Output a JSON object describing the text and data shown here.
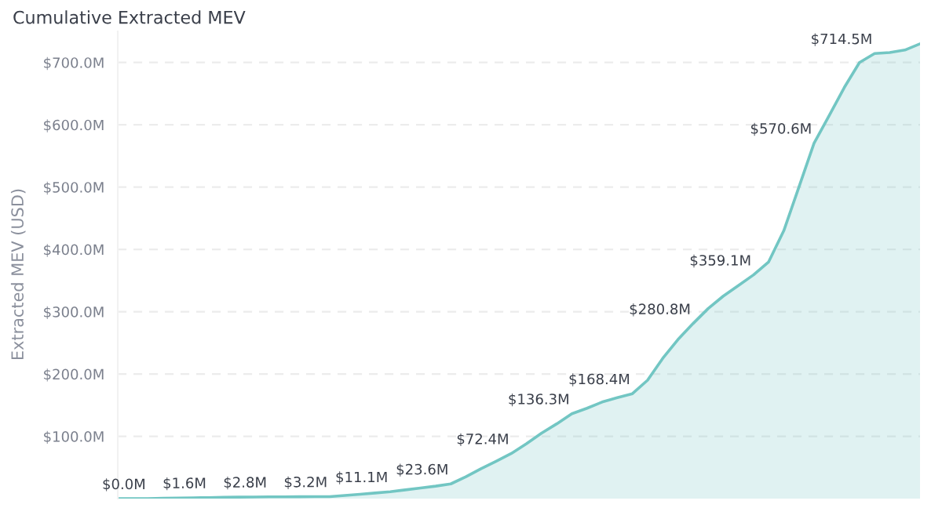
{
  "chart_data": {
    "type": "area",
    "title": "Cumulative Extracted MEV",
    "ylabel": "Extracted MEV (USD)",
    "categories": [
      null,
      null,
      null,
      null,
      null,
      null,
      null,
      null,
      null,
      null,
      null,
      null,
      null,
      null,
      null,
      null,
      null,
      null,
      null,
      null,
      null,
      null,
      null,
      null,
      null,
      null,
      null,
      null,
      null,
      null,
      null,
      null,
      null,
      null,
      null,
      null,
      null,
      null,
      null,
      null,
      null,
      null,
      null,
      null,
      null,
      null,
      null,
      null,
      null,
      null,
      null,
      null,
      null,
      null
    ],
    "series": [
      {
        "color": "#72c6c3",
        "values": [
          0,
          0,
          0,
          0.5,
          0.9,
          1.2,
          1.6,
          2.0,
          2.3,
          2.6,
          2.8,
          2.9,
          3.0,
          3.1,
          3.2,
          5,
          7,
          9,
          11.1,
          14,
          17,
          20,
          23.6,
          35,
          48,
          60,
          72.4,
          88,
          105,
          120,
          136.3,
          145,
          155,
          162,
          168.4,
          190,
          225,
          255,
          280.8,
          305,
          325,
          342,
          359.1,
          380,
          430,
          500,
          570.6,
          615,
          660,
          700,
          714.5,
          716,
          720,
          730
        ],
        "value_labels": [
          null,
          null,
          "$0.0M",
          null,
          null,
          null,
          "$1.6M",
          null,
          null,
          null,
          "$2.8M",
          null,
          null,
          null,
          "$3.2M",
          null,
          null,
          null,
          "$11.1M",
          null,
          null,
          null,
          "$23.6M",
          null,
          null,
          null,
          "$72.4M",
          null,
          null,
          null,
          "$136.3M",
          null,
          null,
          null,
          "$168.4M",
          null,
          null,
          null,
          "$280.8M",
          null,
          null,
          null,
          "$359.1M",
          null,
          null,
          null,
          "$570.6M",
          null,
          null,
          null,
          "$714.5M",
          null,
          null,
          null
        ]
      }
    ],
    "ylim": [
      0,
      750
    ],
    "yticks": [
      {
        "value": 100,
        "label": "$100.0M"
      },
      {
        "value": 200,
        "label": "$200.0M"
      },
      {
        "value": 300,
        "label": "$300.0M"
      },
      {
        "value": 400,
        "label": "$400.0M"
      },
      {
        "value": 500,
        "label": "$500.0M"
      },
      {
        "value": 600,
        "label": "$600.0M"
      },
      {
        "value": 700,
        "label": "$700.0M"
      }
    ],
    "grid": "y",
    "legend": false
  }
}
